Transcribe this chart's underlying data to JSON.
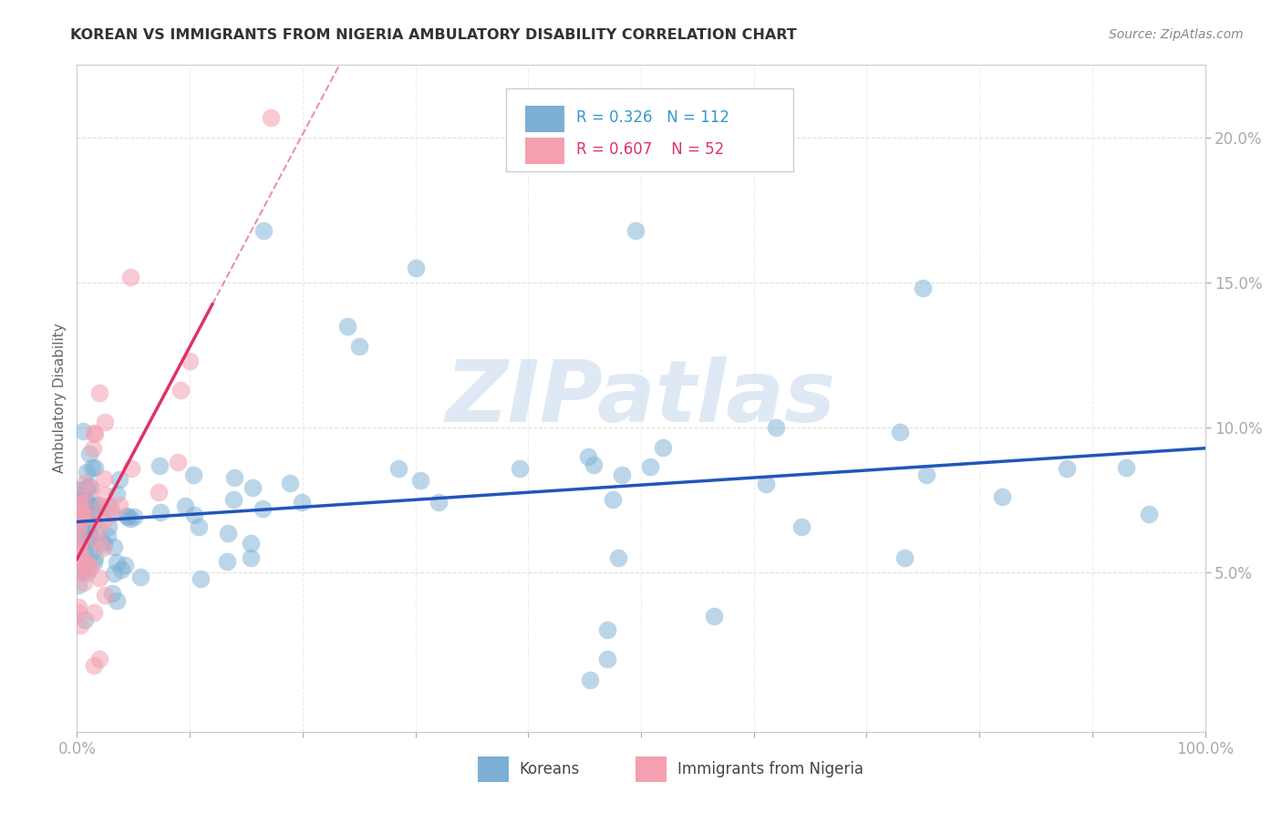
{
  "title": "KOREAN VS IMMIGRANTS FROM NIGERIA AMBULATORY DISABILITY CORRELATION CHART",
  "source": "Source: ZipAtlas.com",
  "ylabel": "Ambulatory Disability",
  "watermark": "ZIPatlas",
  "xlim": [
    0.0,
    1.0
  ],
  "ylim": [
    -0.005,
    0.225
  ],
  "xtick_vals": [
    0.0,
    0.1,
    0.2,
    0.3,
    0.4,
    0.5,
    0.6,
    0.7,
    0.8,
    0.9,
    1.0
  ],
  "xtick_labels": [
    "0.0%",
    "",
    "",
    "",
    "",
    "",
    "",
    "",
    "",
    "",
    "100.0%"
  ],
  "ytick_vals": [
    0.05,
    0.1,
    0.15,
    0.2
  ],
  "ytick_labels": [
    "5.0%",
    "10.0%",
    "15.0%",
    "20.0%"
  ],
  "koreans_R": 0.326,
  "koreans_N": 112,
  "nigeria_R": 0.607,
  "nigeria_N": 52,
  "blue_scatter_color": "#7bafd4",
  "pink_scatter_color": "#f4a0b0",
  "blue_line_color": "#2255bb",
  "pink_line_color": "#dd3366",
  "axis_label_color": "#3399cc",
  "grid_color": "#dddddd",
  "background_color": "#ffffff",
  "legend_box_color": "#dddddd",
  "title_color": "#333333",
  "source_color": "#888888",
  "ylabel_color": "#666666"
}
